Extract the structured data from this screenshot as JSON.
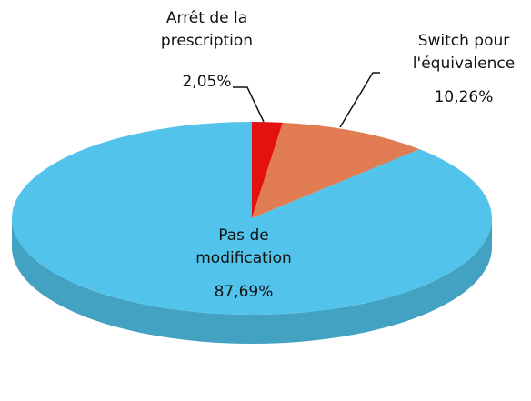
{
  "chart_data": {
    "type": "pie",
    "categories": [
      "Arrêt de la prescription",
      "Switch pour l'équivalence",
      "Pas de modification"
    ],
    "values": [
      2.05,
      10.26,
      87.69
    ],
    "value_labels": [
      "2,05%",
      "10,26%",
      "87,69%"
    ],
    "colors": [
      "#e3110f",
      "#e07b52",
      "#52c4ec"
    ]
  }
}
